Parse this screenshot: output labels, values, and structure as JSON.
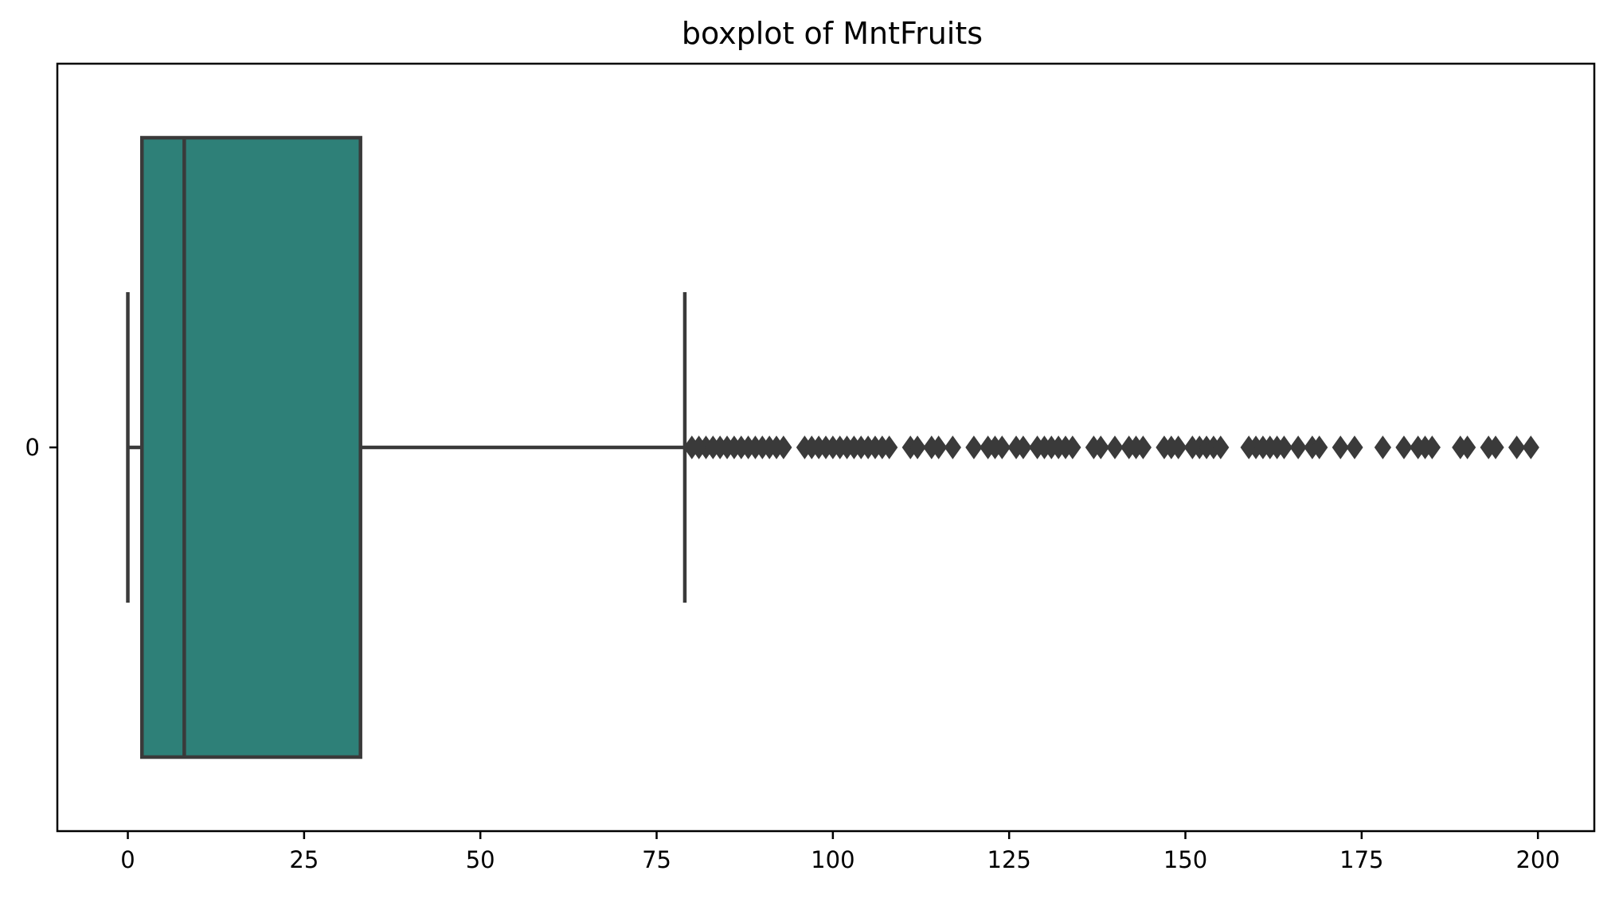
{
  "chart_data": {
    "type": "boxplot",
    "orientation": "horizontal",
    "title": "boxplot of MntFruits",
    "xlabel": "",
    "ylabel": "",
    "xlim": [
      -10,
      208
    ],
    "xticks": [
      0,
      25,
      50,
      75,
      100,
      125,
      150,
      175,
      200
    ],
    "y_categories": [
      "0"
    ],
    "grid": false,
    "legend": "none",
    "box": {
      "whisker_low": 0,
      "q1": 2,
      "median": 8,
      "q3": 33,
      "whisker_high": 79
    },
    "outliers": [
      80,
      81,
      82,
      83,
      84,
      85,
      86,
      87,
      88,
      89,
      90,
      91,
      92,
      93,
      96,
      97,
      98,
      99,
      100,
      101,
      102,
      103,
      104,
      105,
      106,
      107,
      108,
      111,
      112,
      114,
      115,
      117,
      120,
      122,
      123,
      124,
      126,
      127,
      129,
      130,
      131,
      132,
      133,
      134,
      137,
      138,
      140,
      142,
      143,
      144,
      147,
      148,
      149,
      151,
      152,
      153,
      154,
      155,
      159,
      160,
      161,
      162,
      163,
      164,
      166,
      168,
      169,
      172,
      174,
      178,
      181,
      183,
      184,
      185,
      189,
      190,
      193,
      194,
      197,
      199
    ],
    "colors": {
      "box_fill": "#2e8078",
      "line": "#3a3a3a",
      "axes": "#000000",
      "text": "#000000"
    }
  }
}
